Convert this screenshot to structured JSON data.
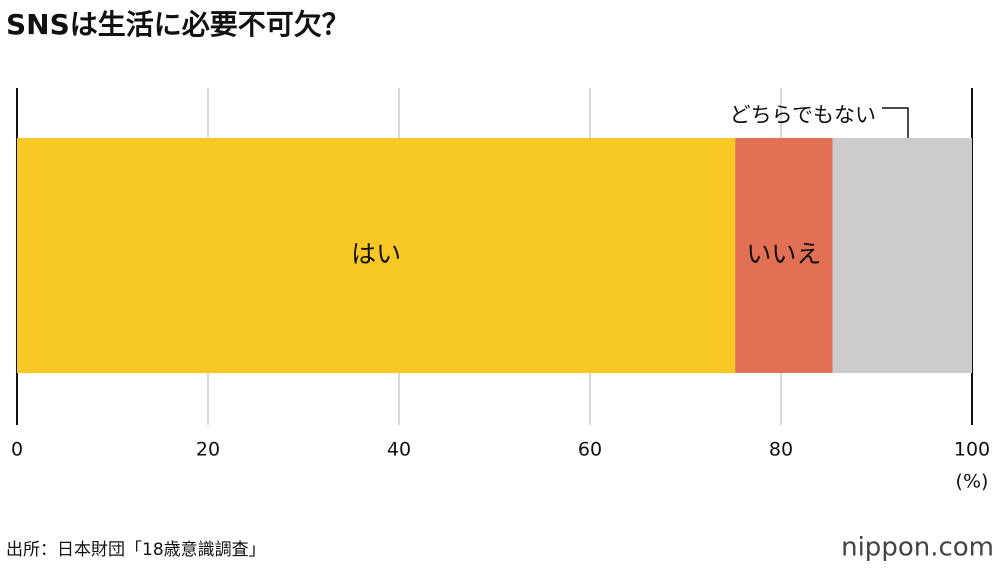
{
  "chart_data": {
    "type": "stacked-bar",
    "orientation": "horizontal",
    "title": "SNSは生活に必要不可欠？",
    "categories": [
      null
    ],
    "series": [
      {
        "name": "はい",
        "color": "#f8c924",
        "values": [
          75.2
        ]
      },
      {
        "name": "いいえ",
        "color": "#e27055",
        "values": [
          10.2
        ]
      },
      {
        "name": "どちらでもない",
        "color": "#cccccc",
        "values": [
          14.6
        ]
      }
    ],
    "xlim": [
      0,
      100
    ],
    "xticks": [
      0,
      20,
      40,
      60,
      80,
      100
    ],
    "x_unit": "(%)",
    "grid": true,
    "source": "出所：日本財団「18歳意識調査」",
    "logo": "nippon.com"
  }
}
